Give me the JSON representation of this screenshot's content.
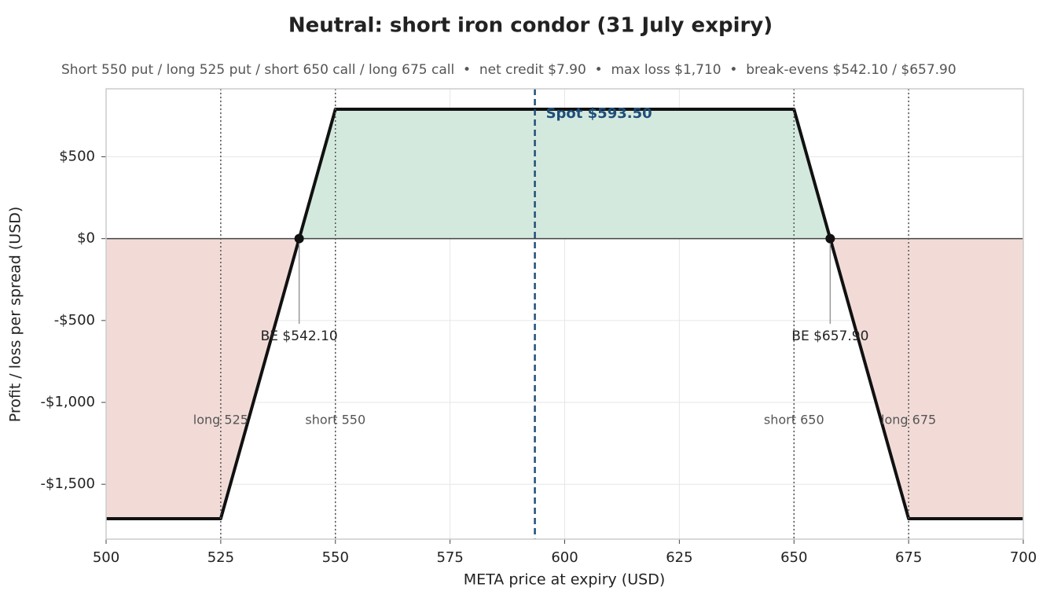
{
  "chart_data": {
    "type": "line",
    "title": "Neutral: short iron condor (31 July expiry)",
    "subtitle": "Short 550 put / long 525 put / short 650 call / long 675 call  •  net credit $7.90  •  max loss $1,710  •  break-evens $542.10 / $657.90",
    "xlabel": "META price at expiry (USD)",
    "ylabel": "Profit / loss per spread (USD)",
    "x": [
      500,
      525,
      542.1,
      550,
      650,
      657.9,
      675,
      700
    ],
    "series": [
      {
        "color": "#111111",
        "values": [
          -1710,
          -1710,
          0,
          790,
          790,
          0,
          -1710,
          -1710
        ]
      }
    ],
    "profit_color": "#d4e9de",
    "loss_color": "#f2dbd7",
    "spot": {
      "value": 593.5,
      "label": "Spot $593.50",
      "color": "#1f4e79"
    },
    "strikes": [
      {
        "value": 525,
        "label": "long 525"
      },
      {
        "value": 550,
        "label": "short 550"
      },
      {
        "value": 650,
        "label": "short 650"
      },
      {
        "value": 675,
        "label": "long 675"
      }
    ],
    "breakevens": [
      {
        "value": 542.1,
        "label": "BE $542.10"
      },
      {
        "value": 657.9,
        "label": "BE $657.90"
      }
    ],
    "xlim": [
      500,
      700
    ],
    "xticks": [
      500,
      525,
      550,
      575,
      600,
      625,
      650,
      675,
      700
    ],
    "ylim": [
      -1835,
      915
    ],
    "yticks": [
      {
        "value": -1500,
        "label": "-$1,500"
      },
      {
        "value": -1000,
        "label": "-$1,000"
      },
      {
        "value": -500,
        "label": "-$500"
      },
      {
        "value": 0,
        "label": "$0"
      },
      {
        "value": 500,
        "label": "$500"
      }
    ],
    "grid": true
  }
}
